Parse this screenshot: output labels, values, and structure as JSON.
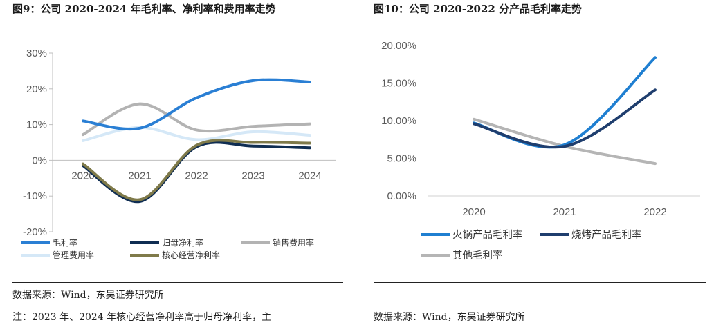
{
  "left": {
    "title": "图9：公司 2020-2024 年毛利率、净利率和费用率走势",
    "source": "数据来源：Wind，东吴证券研究所",
    "note": "注：2023 年、2024 年核心经营净利率高于归母净利率，主"
  },
  "right": {
    "title": "图10：公司 2020-2022 分产品毛利率走势",
    "source": "数据来源：Wind，东吴证券研究所"
  },
  "chart_data": [
    {
      "type": "line",
      "title": "",
      "xlabel": "",
      "ylabel": "",
      "x": [
        "2020",
        "2021",
        "2022",
        "2023",
        "2024"
      ],
      "y_ticks": [
        "30%",
        "20%",
        "10%",
        "0%",
        "-10%",
        "-20%"
      ],
      "ylim": [
        -20,
        30
      ],
      "grid": false,
      "legend_position": "bottom",
      "series": [
        {
          "name": "毛利率",
          "color": "#2a7fd4",
          "values": [
            11.0,
            9.0,
            17.5,
            22.3,
            21.9
          ]
        },
        {
          "name": "归母净利率",
          "color": "#0f2d52",
          "values": [
            -1.5,
            -11.5,
            3.8,
            4.0,
            3.5
          ]
        },
        {
          "name": "销售费用率",
          "color": "#b3b3b3",
          "values": [
            7.2,
            15.8,
            8.5,
            9.5,
            10.2
          ]
        },
        {
          "name": "管理费用率",
          "color": "#d5e8f7",
          "values": [
            5.5,
            9.2,
            5.8,
            8.0,
            7.0
          ]
        },
        {
          "name": "核心经营净利率",
          "color": "#7f7a4a",
          "values": [
            -1.0,
            -11.0,
            4.2,
            5.0,
            4.8
          ]
        }
      ]
    },
    {
      "type": "line",
      "title": "",
      "xlabel": "",
      "ylabel": "",
      "x": [
        "2020",
        "2021",
        "2022"
      ],
      "y_ticks": [
        "20.00%",
        "15.00%",
        "10.00%",
        "5.00%",
        "0.00%"
      ],
      "ylim": [
        0,
        20
      ],
      "grid": false,
      "legend_position": "bottom",
      "series": [
        {
          "name": "火锅产品毛利率",
          "color": "#1f7fd1",
          "values": [
            9.7,
            6.8,
            18.4
          ]
        },
        {
          "name": "烧烤产品毛利率",
          "color": "#1f3e6e",
          "values": [
            9.6,
            6.6,
            14.1
          ]
        },
        {
          "name": "其他毛利率",
          "color": "#b5b5b5",
          "values": [
            10.2,
            6.6,
            4.3
          ]
        }
      ]
    }
  ]
}
